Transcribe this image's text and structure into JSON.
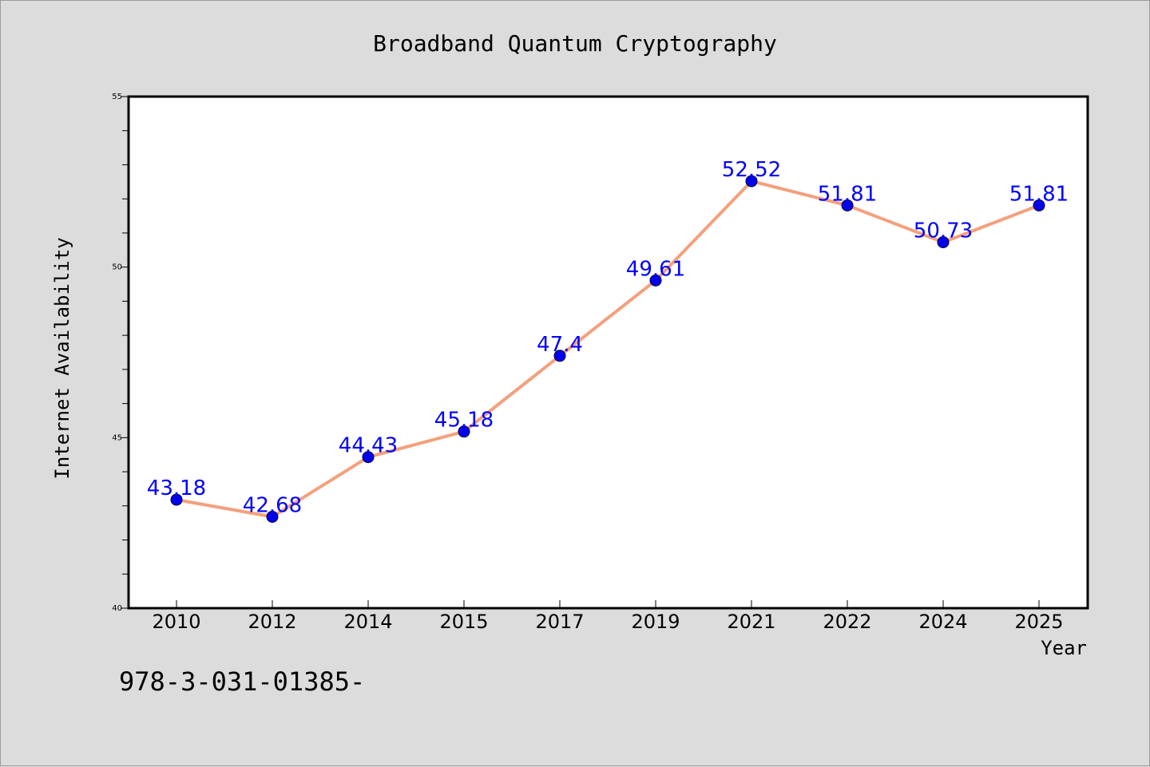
{
  "chart_data": {
    "type": "line",
    "title": "Broadband Quantum Cryptography",
    "xlabel": "Year",
    "ylabel": "Internet Availability",
    "categories": [
      "2010",
      "2012",
      "2014",
      "2015",
      "2017",
      "2019",
      "2021",
      "2022",
      "2024",
      "2025"
    ],
    "series": [
      {
        "values": [
          43.18,
          42.68,
          44.43,
          45.18,
          47.4,
          49.61,
          52.52,
          51.81,
          50.73,
          51.81
        ],
        "line_color": "#f4a07c",
        "marker_color": "#0000ee"
      }
    ],
    "data_labels": [
      "43.18",
      "42.68",
      "44.43",
      "45.18",
      "47.4",
      "49.61",
      "52.52",
      "51.81",
      "50.73",
      "51.81"
    ],
    "data_label_color": "#0000ff",
    "ylim": [
      40,
      55
    ],
    "yticks": [
      "40",
      "45",
      "50",
      "55"
    ],
    "grid": false,
    "legend": "none"
  },
  "footer": {
    "isbn_text": "978-3-031-01385-"
  }
}
